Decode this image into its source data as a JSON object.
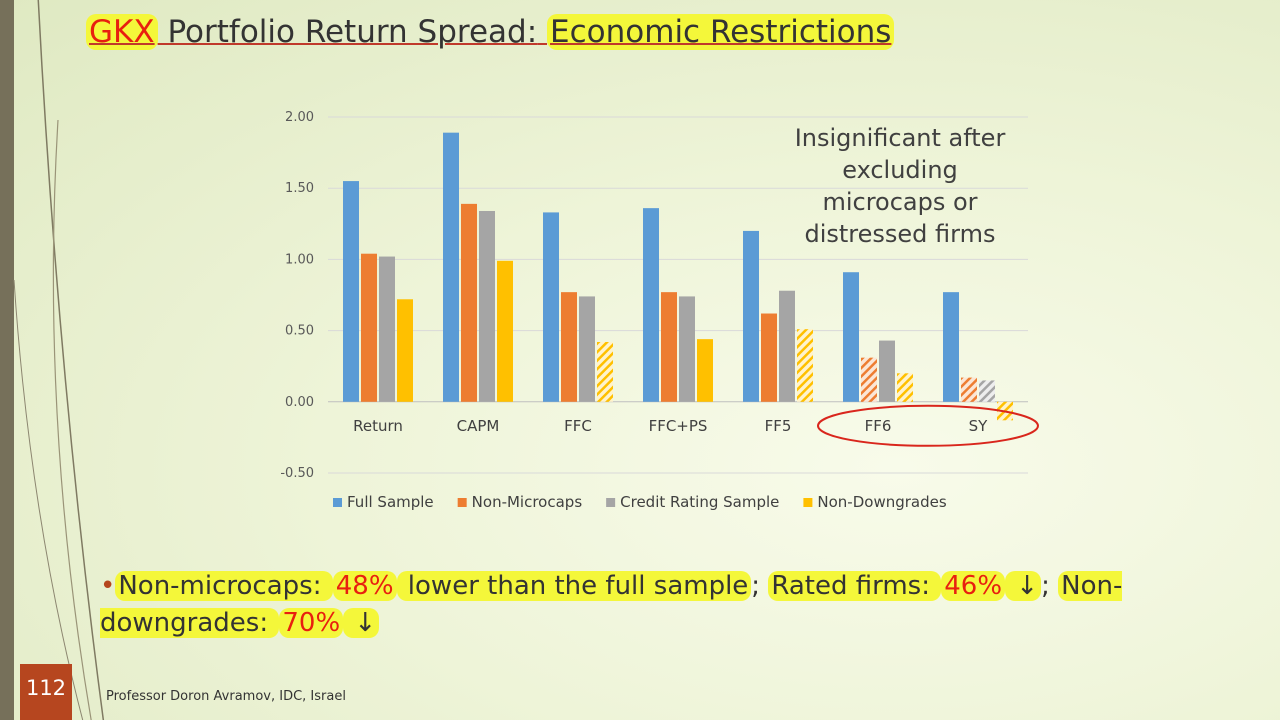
{
  "slide": {
    "title_parts": {
      "gkx": "GKX",
      "middle": " Portfolio Return Spread:",
      "econ": "Economic Restrictions"
    },
    "annotation": "Insignificant after excluding microcaps or distressed firms",
    "bullet": {
      "t1": "Non-microcaps: ",
      "p1": "48%",
      "t2": " lower than the full sample",
      "sep1": "; ",
      "t3": "Rated firms: ",
      "p2": "46%",
      "arrow1": " ↓",
      "sep2": ";",
      "t4": "Non-downgrades: ",
      "p3": "70%",
      "arrow2": " ↓"
    },
    "slide_number": "112",
    "footer": "Professor Doron Avramov, IDC, Israel"
  },
  "colors": {
    "full_sample": "#5b9bd5",
    "non_microcaps": "#ed7d31",
    "credit_rating": "#a5a5a5",
    "non_downgrades": "#ffc000",
    "highlight": "#f4f73a",
    "red_text": "#e8200f",
    "circle": "#d9261c"
  },
  "chart_data": {
    "type": "bar",
    "categories": [
      "Return",
      "CAPM",
      "FFC",
      "FFC+PS",
      "FF5",
      "FF6",
      "SY"
    ],
    "ylim": [
      -0.5,
      2.0
    ],
    "yticks": [
      "2.00",
      "1.50",
      "1.00",
      "0.50",
      "0.00",
      "-0.50"
    ],
    "ytick_values": [
      2.0,
      1.5,
      1.0,
      0.5,
      0.0,
      -0.5
    ],
    "grid": true,
    "legend_position": "bottom",
    "series": [
      {
        "name": "Full Sample",
        "values": [
          1.55,
          1.89,
          1.33,
          1.36,
          1.2,
          0.91,
          0.77
        ],
        "insignificant": [
          false,
          false,
          false,
          false,
          false,
          false,
          false
        ]
      },
      {
        "name": "Non-Microcaps",
        "values": [
          1.04,
          1.39,
          0.77,
          0.77,
          0.62,
          0.31,
          0.17
        ],
        "insignificant": [
          false,
          false,
          false,
          false,
          false,
          true,
          true
        ]
      },
      {
        "name": "Credit Rating Sample",
        "values": [
          1.02,
          1.34,
          0.74,
          0.74,
          0.78,
          0.43,
          0.15
        ],
        "insignificant": [
          false,
          false,
          false,
          false,
          false,
          false,
          true
        ]
      },
      {
        "name": "Non-Downgrades",
        "values": [
          0.72,
          0.99,
          0.42,
          0.44,
          0.51,
          0.2,
          -0.13
        ],
        "insignificant": [
          false,
          false,
          true,
          false,
          true,
          true,
          true
        ]
      }
    ],
    "circled_categories": [
      "FF6",
      "SY"
    ]
  }
}
